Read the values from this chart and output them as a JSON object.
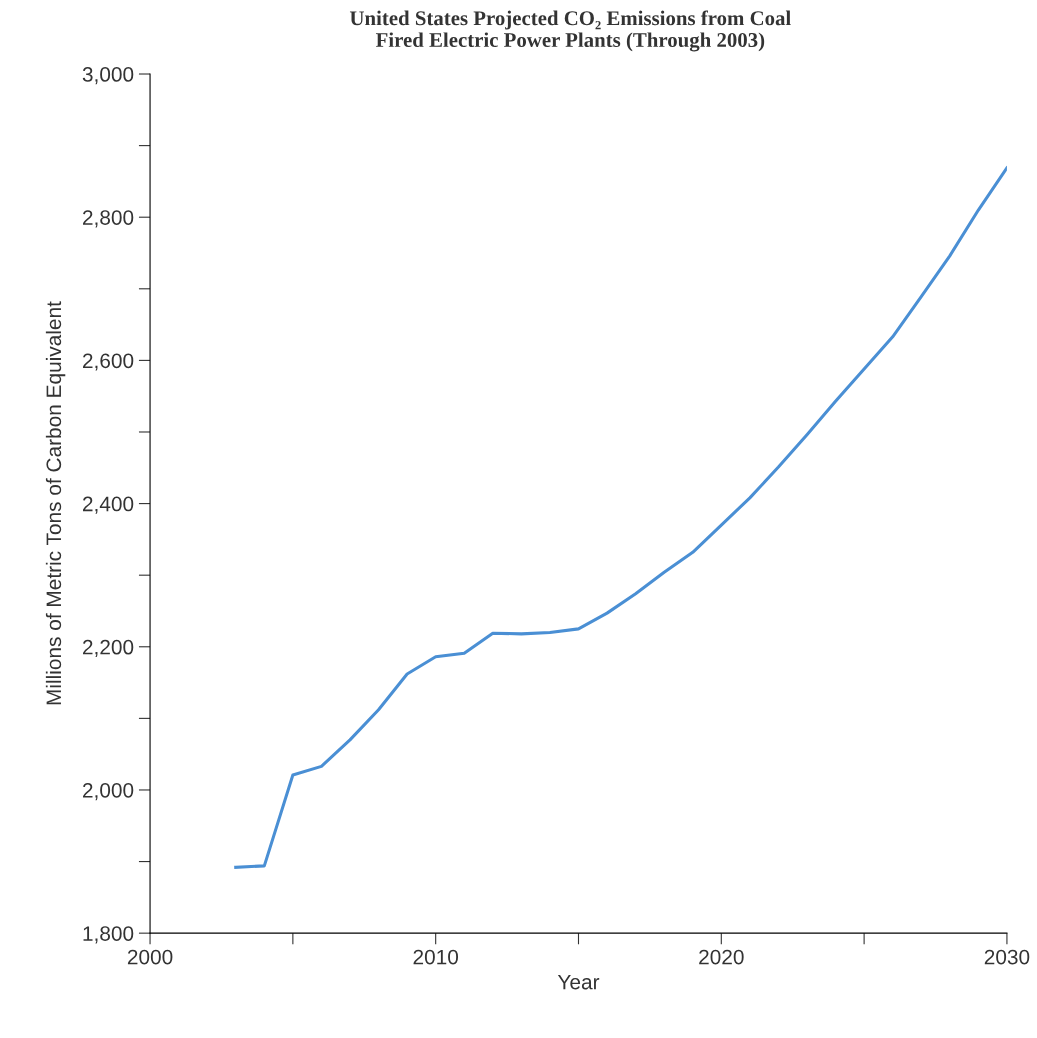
{
  "chart_data": {
    "type": "line",
    "title": "United States Projected CO₂ Emissions from Coal\nFired Electric Power Plants (Through 2003)",
    "xlabel": "Year",
    "ylabel": "Millions of Metric Tons of Carbon Equivalent",
    "x": [
      2003,
      2004,
      2005,
      2006,
      2007,
      2008,
      2009,
      2010,
      2011,
      2012,
      2013,
      2014,
      2015,
      2016,
      2017,
      2018,
      2019,
      2020,
      2021,
      2022,
      2023,
      2024,
      2025,
      2026,
      2027,
      2028,
      2029,
      2030
    ],
    "series": [
      {
        "color": "#4a8fd4",
        "values": [
          1892,
          1894,
          2021,
          2033,
          2070,
          2112,
          2162,
          2186,
          2191,
          2219,
          2218,
          2220,
          2225,
          2247,
          2274,
          2304,
          2332,
          2370,
          2408,
          2451,
          2496,
          2543,
          2588,
          2633,
          2689,
          2746,
          2810,
          2869
        ]
      }
    ],
    "xlim": [
      2000,
      2030
    ],
    "xticks": [
      2000,
      {
        "value": 2005,
        "label": null
      },
      2010,
      {
        "value": 2015,
        "label": null
      },
      2020,
      {
        "value": 2025,
        "label": null
      },
      2030
    ],
    "ylim": [
      1800,
      3000
    ],
    "yticks": [
      {
        "value": 1800,
        "label": "1,800"
      },
      {
        "value": 1900,
        "label": null
      },
      {
        "value": 2000,
        "label": "2,000"
      },
      {
        "value": 2100,
        "label": null
      },
      {
        "value": 2200,
        "label": "2,200"
      },
      {
        "value": 2300,
        "label": null
      },
      {
        "value": 2400,
        "label": "2,400"
      },
      {
        "value": 2500,
        "label": null
      },
      {
        "value": 2600,
        "label": "2,600"
      },
      {
        "value": 2700,
        "label": null
      },
      {
        "value": 2800,
        "label": "2,800"
      },
      {
        "value": 2900,
        "label": null
      },
      {
        "value": 3000,
        "label": "3,000"
      }
    ],
    "grid": false,
    "marker": "none",
    "line_style": "solid"
  }
}
